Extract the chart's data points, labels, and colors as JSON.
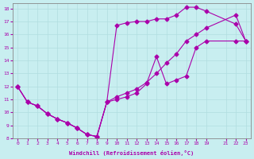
{
  "xlabel": "Windchill (Refroidissement éolien,°C)",
  "bg_color": "#c8eef0",
  "line_color": "#aa00aa",
  "marker": "D",
  "markersize": 2.5,
  "linewidth": 0.8,
  "xlim": [
    -0.5,
    23.5
  ],
  "ylim": [
    8,
    18.4
  ],
  "xticks": [
    0,
    1,
    2,
    3,
    4,
    5,
    6,
    7,
    8,
    9,
    10,
    11,
    12,
    13,
    14,
    15,
    16,
    17,
    18,
    19,
    21,
    22,
    23
  ],
  "yticks": [
    8,
    9,
    10,
    11,
    12,
    13,
    14,
    15,
    16,
    17,
    18
  ],
  "grid_color": "#b0dde0",
  "series": [
    {
      "x": [
        0,
        1,
        2,
        3,
        4,
        5,
        6,
        7,
        8,
        9,
        10,
        11,
        12,
        13,
        14,
        15,
        16,
        17,
        18,
        19,
        22,
        23
      ],
      "y": [
        12,
        10.8,
        10.5,
        9.9,
        9.5,
        9.2,
        8.8,
        8.3,
        8.15,
        10.8,
        16.7,
        16.9,
        17.0,
        17.0,
        17.2,
        17.2,
        17.5,
        18.1,
        18.1,
        17.8,
        16.8,
        15.5
      ]
    },
    {
      "x": [
        0,
        1,
        2,
        3,
        4,
        5,
        6,
        7,
        8,
        9,
        10,
        11,
        12,
        13,
        14,
        15,
        16,
        17,
        18,
        19,
        22,
        23
      ],
      "y": [
        12,
        10.8,
        10.5,
        9.9,
        9.5,
        9.2,
        8.8,
        8.3,
        8.15,
        10.8,
        11.2,
        11.5,
        11.8,
        12.3,
        13.0,
        13.8,
        14.5,
        15.5,
        16.0,
        16.5,
        17.5,
        15.5
      ]
    },
    {
      "x": [
        0,
        1,
        2,
        3,
        4,
        5,
        6,
        7,
        8,
        9,
        10,
        11,
        12,
        13,
        14,
        15,
        16,
        17,
        18,
        19,
        22,
        23
      ],
      "y": [
        12,
        10.8,
        10.5,
        9.9,
        9.5,
        9.2,
        8.8,
        8.3,
        8.15,
        10.8,
        11.0,
        11.2,
        11.5,
        12.2,
        14.3,
        12.2,
        12.5,
        12.8,
        15.0,
        15.5,
        15.5,
        15.5
      ]
    }
  ]
}
